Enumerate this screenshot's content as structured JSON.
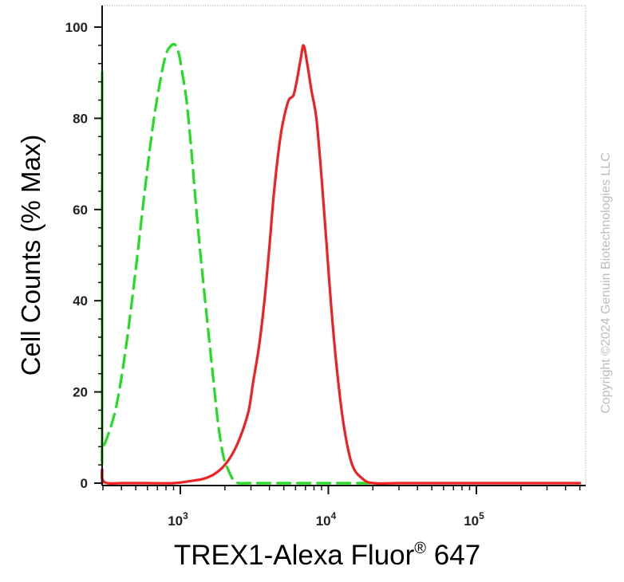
{
  "chart_data": {
    "type": "line",
    "xlabel": "TREX1-Alexa Fluor® 647",
    "xlabel_main": "TREX1-Alexa Fluor",
    "xlabel_sup": "®",
    "xlabel_tail": " 647",
    "ylabel": "Cell Counts (% Max)",
    "x_scale": "log",
    "xlim": [
      240,
      500000
    ],
    "ylim": [
      0,
      105
    ],
    "x_ticks": [
      {
        "base": "10",
        "exp": "3",
        "value": 1000
      },
      {
        "base": "10",
        "exp": "4",
        "value": 10000
      },
      {
        "base": "10",
        "exp": "5",
        "value": 100000
      }
    ],
    "y_ticks": [
      {
        "label": "0",
        "value": 0
      },
      {
        "label": "20",
        "value": 20
      },
      {
        "label": "40",
        "value": 40
      },
      {
        "label": "60",
        "value": 60
      },
      {
        "label": "80",
        "value": 80
      },
      {
        "label": "100",
        "value": 100
      }
    ],
    "grid": false,
    "series": [
      {
        "style": "dashed",
        "color": "#22dd22",
        "x": [
          245,
          250,
          260,
          280,
          320,
          370,
          430,
          500,
          570,
          650,
          730,
          800,
          870,
          930,
          980,
          1030,
          1100,
          1180,
          1260,
          1350,
          1450,
          1560,
          1680,
          1800,
          1950,
          2100,
          2300,
          2500,
          2800,
          3500,
          5000,
          10000,
          20000
        ],
        "y": [
          0,
          90,
          12,
          8,
          10,
          17,
          30,
          47,
          63,
          78,
          88,
          94,
          96,
          96,
          94,
          90,
          84,
          74,
          63,
          52,
          42,
          32,
          22,
          13,
          6,
          3,
          0.5,
          0,
          0,
          0,
          0,
          0,
          0
        ]
      },
      {
        "style": "solid",
        "color": "#ee2222",
        "x": [
          245,
          260,
          280,
          320,
          400,
          600,
          900,
          1200,
          1450,
          1700,
          2000,
          2300,
          2600,
          2900,
          3100,
          3400,
          3700,
          4000,
          4300,
          4700,
          5000,
          5400,
          5800,
          6100,
          6500,
          6800,
          7200,
          7700,
          8300,
          9000,
          9700,
          10500,
          11500,
          12800,
          14500,
          17000,
          20000,
          30000,
          60000,
          150000,
          300000,
          500000
        ],
        "y": [
          0,
          3,
          1,
          0,
          0,
          0,
          0,
          0.5,
          1,
          2,
          4,
          7,
          11,
          16,
          22,
          30,
          40,
          52,
          64,
          75,
          80,
          84,
          85,
          88,
          93,
          96,
          92,
          86,
          80,
          67,
          53,
          38,
          24,
          12,
          4,
          1,
          0,
          0,
          0,
          0,
          0,
          0
        ]
      }
    ]
  },
  "watermark": "Copyright ©2024 Genuin Biotechnologies LLC"
}
